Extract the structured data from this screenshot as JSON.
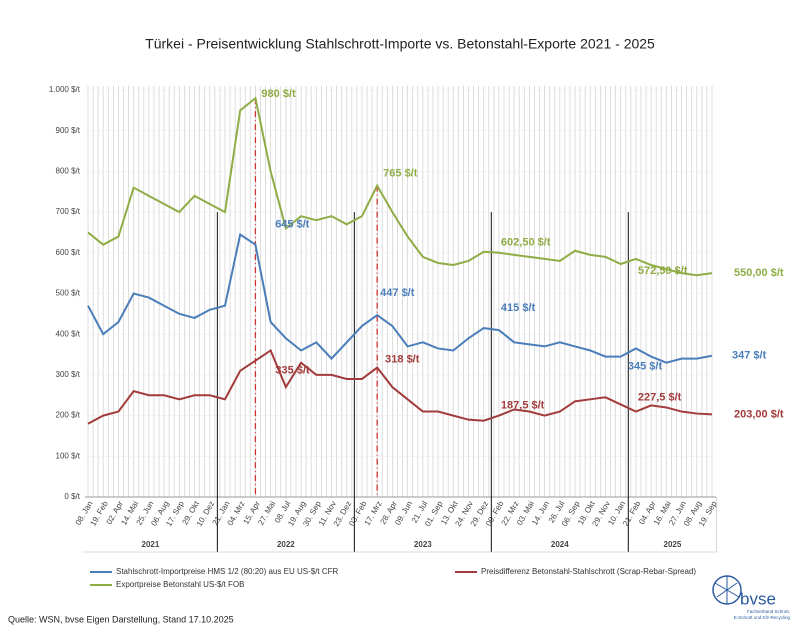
{
  "chart_data": {
    "type": "line",
    "title": "Türkei - Preisentwicklung Stahlschrott-Importe vs. Betonstahl-Exporte 2021 -  2025",
    "categories": [
      "08. Jan",
      "19. Feb",
      "02. Apr",
      "14. Mai",
      "25. Jun",
      "06. Aug",
      "17. Sep",
      "29. Okt",
      "10. Dez",
      "21. Jan",
      "04. Mrz",
      "15. Apr",
      "27. Mai",
      "08. Jul",
      "19. Aug",
      "30. Sep",
      "11. Nov",
      "23. Dez",
      "03. Feb",
      "17. Mrz",
      "28. Apr",
      "09. Jun",
      "21. Jul",
      "01. Sep",
      "13. Okt",
      "24. Nov",
      "29. Dez",
      "09. Feb",
      "22. Mrz",
      "03. Mai",
      "14. Jun",
      "26. Jul",
      "06. Sep",
      "18. Okt",
      "29. Nov",
      "10. Jan",
      "21. Feb",
      "04. Apr",
      "16. Mai",
      "27. Jun",
      "08. Aug",
      "19. Sep"
    ],
    "years": [
      "2021",
      "2022",
      "2023",
      "2024",
      "2025"
    ],
    "series": [
      {
        "name": "Stahlschrott-Importpreise HMS 1/2 (80:20) aus EU US-$/t CFR",
        "color": "#4a7ebb",
        "values": [
          470,
          400,
          430,
          500,
          490,
          470,
          450,
          440,
          460,
          470,
          645,
          620,
          430,
          390,
          360,
          380,
          340,
          380,
          420,
          447,
          420,
          370,
          380,
          365,
          360,
          390,
          415,
          410,
          380,
          375,
          370,
          380,
          370,
          360,
          345,
          345,
          365,
          345,
          330,
          340,
          340,
          347
        ]
      },
      {
        "name": "Preisdifferenz Betonstahl-Stahlschrott (Scrap-Rebar-Spread)",
        "color": "#a23b3b",
        "values": [
          180,
          200,
          210,
          260,
          250,
          250,
          240,
          250,
          250,
          240,
          310,
          335,
          360,
          270,
          330,
          300,
          300,
          290,
          290,
          318,
          270,
          240,
          210,
          210,
          200,
          190,
          187.5,
          200,
          215,
          210,
          200,
          210,
          235,
          240,
          245,
          227.5,
          210,
          225,
          220,
          210,
          205,
          203
        ]
      },
      {
        "name": "Exportpreise Betonstahl US-$/t FOB",
        "color": "#8fac45",
        "values": [
          650,
          620,
          640,
          760,
          740,
          720,
          700,
          740,
          720,
          700,
          950,
          980,
          800,
          660,
          690,
          680,
          690,
          670,
          690,
          765,
          700,
          640,
          590,
          575,
          570,
          580,
          602.5,
          600,
          595,
          590,
          585,
          580,
          605,
          595,
          590,
          572.5,
          585,
          570,
          560,
          550,
          545,
          550
        ]
      }
    ],
    "annotations": [
      "980 $/t",
      "645 $/t",
      "335 $/t",
      "765 $/t",
      "447 $/t",
      "318 $/t",
      "602,50 $/t",
      "415 $/t",
      "187,5 $/t",
      "572,50 $/t",
      "345 $/t",
      "227,5 $/t",
      "550,00 $/t",
      "347 $/t",
      "203,00 $/t"
    ],
    "ylim": [
      0,
      1000
    ],
    "yticks": [
      {
        "value": 0,
        "label": "0 $/t"
      },
      {
        "value": 100,
        "label": "100 $/t"
      },
      {
        "value": 200,
        "label": "200 $/t"
      },
      {
        "value": 300,
        "label": "300 $/t"
      },
      {
        "value": 400,
        "label": "400 $/t"
      },
      {
        "value": 500,
        "label": "500 $/t"
      },
      {
        "value": 600,
        "label": "600 $/t"
      },
      {
        "value": 700,
        "label": "700 $/t"
      },
      {
        "value": 800,
        "label": "800 $/t"
      },
      {
        "value": 900,
        "label": "900 $/t"
      },
      {
        "value": 1000,
        "label": "1.000 $/t"
      }
    ],
    "grid": true
  },
  "source": "Quelle: WSN, bvse Eigen Darstellung, Stand 17.10.2025",
  "logo": {
    "name": "bvse",
    "subtitle_1": "Fachverband Schrott,",
    "subtitle_2": "E-Schrott und Kfz-Recycling"
  }
}
